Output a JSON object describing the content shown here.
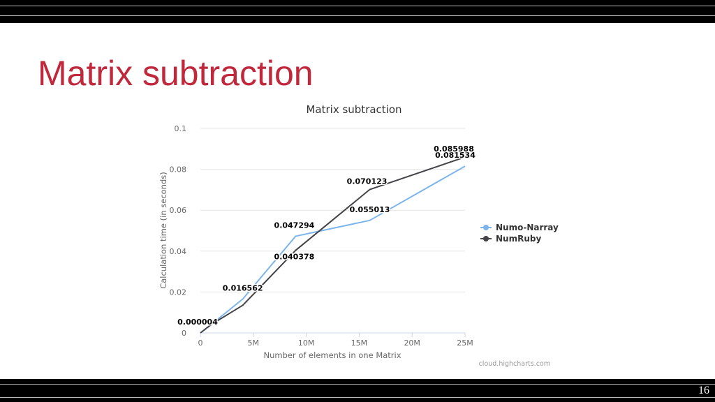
{
  "slide": {
    "title": "Matrix subtraction",
    "page_number": "16"
  },
  "chart_data": {
    "type": "line",
    "title": "Matrix subtraction",
    "xlabel": "Number of elements in one Matrix",
    "ylabel": "Calculation time (in seconds)",
    "x_ticks": [
      "0",
      "5M",
      "10M",
      "15M",
      "20M",
      "25M"
    ],
    "y_ticks": [
      "0",
      "0.02",
      "0.04",
      "0.06",
      "0.08",
      "0.1"
    ],
    "xlim": [
      0,
      25000000
    ],
    "ylim": [
      0,
      0.1
    ],
    "grid": "horizontal",
    "legend_position": "right",
    "credits": "cloud.highcharts.com",
    "series": [
      {
        "name": "Numo-Narray",
        "color": "#7cb5ec",
        "x": [
          0,
          1000000,
          4000000,
          9000000,
          16000000,
          25000000
        ],
        "y": [
          4e-06,
          0.004,
          0.016562,
          0.047294,
          0.055013,
          0.081534
        ],
        "labels": [
          "0.000004",
          "",
          "0.016562",
          "0.047294",
          "0.055013",
          "0.081534"
        ]
      },
      {
        "name": "NumRuby",
        "color": "#434348",
        "x": [
          0,
          1000000,
          4000000,
          9000000,
          16000000,
          25000000
        ],
        "y": [
          4e-06,
          0.004,
          0.0135,
          0.040378,
          0.070123,
          0.085988
        ],
        "labels": [
          "",
          "",
          "",
          "0.040378",
          "0.070123",
          "0.085988"
        ]
      }
    ]
  }
}
